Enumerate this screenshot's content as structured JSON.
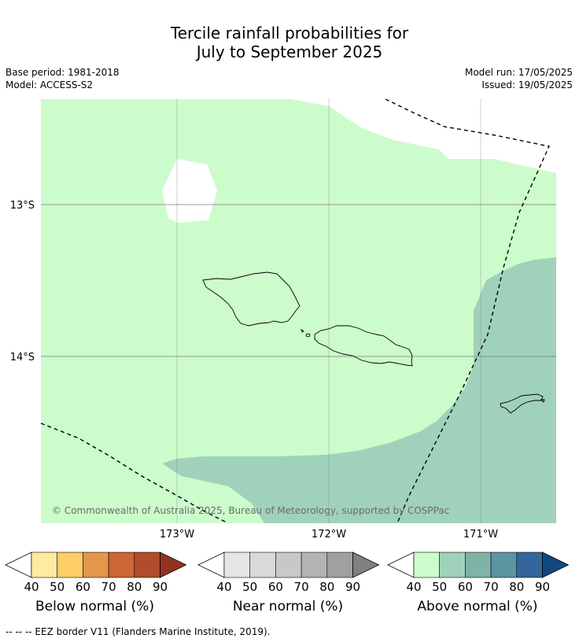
{
  "title_line1": "Tercile rainfall probabilities for",
  "title_line2": "July to September 2025",
  "base_period": "Base period: 1981-2018",
  "model": "Model: ACCESS-S2",
  "model_run": "Model run: 17/05/2025",
  "issued": "Issued: 19/05/2025",
  "lat_labels": [
    "13°S",
    "14°S"
  ],
  "lon_labels": [
    "173°W",
    "172°W",
    "171°W"
  ],
  "copyright": "© Commonwealth of Australia 2025, Bureau of Meteorology, supported by COSPPac",
  "colorbars": [
    {
      "label": "Below normal (%)",
      "ticks": [
        "40",
        "50",
        "60",
        "70",
        "80",
        "90"
      ],
      "colors": [
        "#ffffff",
        "#ffeba0",
        "#fdce68",
        "#e2974b",
        "#cd6535",
        "#b04d2c",
        "#93331f"
      ]
    },
    {
      "label": "Near normal (%)",
      "ticks": [
        "40",
        "50",
        "60",
        "70",
        "80",
        "90"
      ],
      "colors": [
        "#ffffff",
        "#e6e6e6",
        "#d9d9d9",
        "#c8c8c8",
        "#b3b3b3",
        "#a0a0a0",
        "#808080"
      ]
    },
    {
      "label": "Above normal (%)",
      "ticks": [
        "40",
        "50",
        "60",
        "70",
        "80",
        "90"
      ],
      "colors": [
        "#ffffff",
        "#ccfccb",
        "#a0d2bb",
        "#7fb3a8",
        "#5b95a2",
        "#33679b",
        "#11487e"
      ]
    }
  ],
  "footer": "--  --  -- EEZ border V11 (Flanders Marine Institute, 2019).",
  "colors": {
    "above_40_50": "#ccfccb",
    "above_50_60": "#a0d2bb",
    "no_data": "#ffffff",
    "grid": "#7a7a7a",
    "coast": "#000000"
  }
}
